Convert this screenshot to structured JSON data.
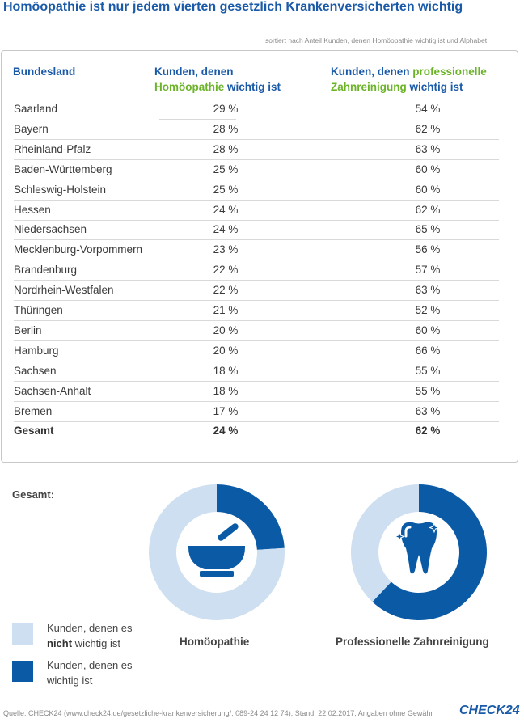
{
  "title": "Homöopathie ist nur jedem vierten gesetzlich Krankenversicherten wichtig",
  "subtitle": "sortiert nach Anteil Kunden, denen Homöopathie wichtig ist und Alphabet",
  "table": {
    "header": {
      "col1": "Bundesland",
      "col2_part1": "Kunden, denen",
      "col2_part2": "Homöopathie",
      "col2_part3": " wichtig ist",
      "col3_part1": "Kunden, denen ",
      "col3_part2": "professionelle",
      "col3_part3": "Zahnreinigung",
      "col3_part4": " wichtig ist"
    },
    "rows": [
      {
        "state": "Saarland",
        "homoeo": "29 %",
        "zahn": "54 %"
      },
      {
        "state": "Bayern",
        "homoeo": "28 %",
        "zahn": "62 %"
      },
      {
        "state": "Rheinland-Pfalz",
        "homoeo": "28 %",
        "zahn": "63 %"
      },
      {
        "state": "Baden-Württemberg",
        "homoeo": "25 %",
        "zahn": "60 %"
      },
      {
        "state": "Schleswig-Holstein",
        "homoeo": "25 %",
        "zahn": "60 %"
      },
      {
        "state": "Hessen",
        "homoeo": "24 %",
        "zahn": "62 %"
      },
      {
        "state": "Niedersachsen",
        "homoeo": "24 %",
        "zahn": "65 %"
      },
      {
        "state": "Mecklenburg-Vorpommern",
        "homoeo": "23 %",
        "zahn": "56 %"
      },
      {
        "state": "Brandenburg",
        "homoeo": "22 %",
        "zahn": "57 %"
      },
      {
        "state": "Nordrhein-Westfalen",
        "homoeo": "22 %",
        "zahn": "63 %"
      },
      {
        "state": "Thüringen",
        "homoeo": "21 %",
        "zahn": "52 %"
      },
      {
        "state": "Berlin",
        "homoeo": "20 %",
        "zahn": "60 %"
      },
      {
        "state": "Hamburg",
        "homoeo": "20 %",
        "zahn": "66 %"
      },
      {
        "state": "Sachsen",
        "homoeo": "18 %",
        "zahn": "55 %"
      },
      {
        "state": "Sachsen-Anhalt",
        "homoeo": "18 %",
        "zahn": "55 %"
      },
      {
        "state": "Bremen",
        "homoeo": "17 %",
        "zahn": "63 %"
      }
    ],
    "total": {
      "state": "Gesamt",
      "homoeo": "24 %",
      "zahn": "62 %"
    }
  },
  "gesamt_label": "Gesamt:",
  "legend": {
    "not_important_part1": "Kunden, denen es",
    "not_important_bold": "nicht",
    "not_important_part2": " wichtig ist",
    "important_line1": "Kunden, denen es",
    "important_line2": "wichtig ist"
  },
  "colors": {
    "important": "#0a5aa6",
    "not_important": "#cddff0",
    "header_blue": "#1a5aa8",
    "header_green": "#6bb428"
  },
  "icons": {
    "homoeopathie": "mortar-pestle-icon",
    "zahnreinigung": "sparkling-tooth-icon"
  },
  "chart_data": [
    {
      "type": "pie",
      "title": "Homöopathie",
      "categories": [
        "Kunden, denen es wichtig ist",
        "Kunden, denen es nicht wichtig ist"
      ],
      "values": [
        24,
        76
      ]
    },
    {
      "type": "pie",
      "title": "Professionelle Zahnreinigung",
      "categories": [
        "Kunden, denen es wichtig ist",
        "Kunden, denen es nicht wichtig ist"
      ],
      "values": [
        62,
        38
      ]
    }
  ],
  "footer": "Quelle: CHECK24 (www.check24.de/gesetzliche-krankenversicherung/; 089-24 24 12 74), Stand: 22.02.2017; Angaben ohne Gewähr",
  "logo": "CHECK24"
}
